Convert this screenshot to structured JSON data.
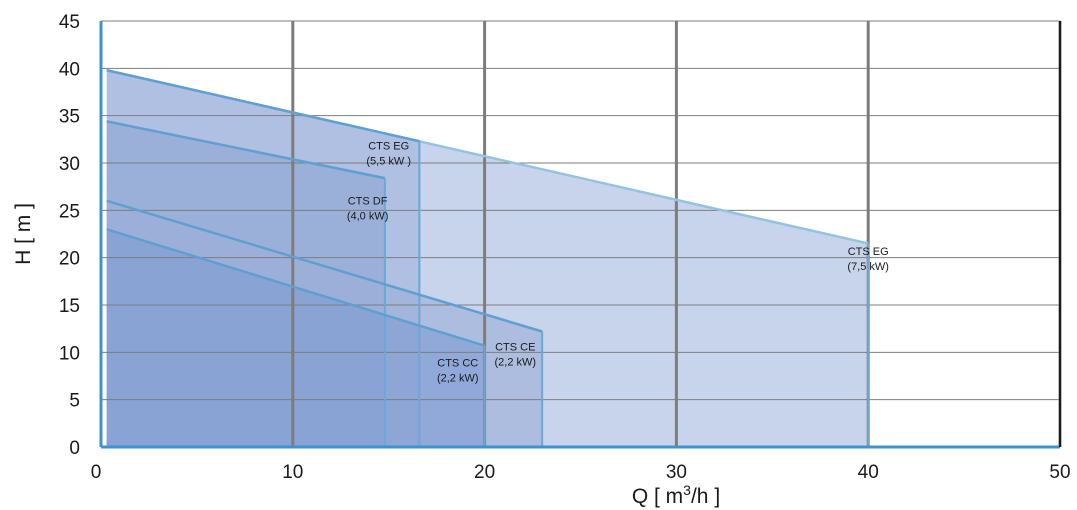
{
  "chart_data": {
    "type": "area",
    "xlabel": "Q [ m³/h ]",
    "ylabel": "H [ m ]",
    "xlim": [
      0,
      50
    ],
    "ylim": [
      0,
      45
    ],
    "xticks": [
      "0",
      "10",
      "20",
      "30",
      "40",
      "50"
    ],
    "yticks": [
      "0",
      "5",
      "10",
      "15",
      "20",
      "25",
      "30",
      "35",
      "40",
      "45"
    ],
    "grid": true,
    "series": [
      {
        "label": [
          "CTS EG",
          "(7,5 kW)"
        ],
        "color": "#c8d4ec",
        "points": [
          [
            0.3,
            39.8
          ],
          [
            40,
            21.5
          ]
        ],
        "annotation_at": [
          40,
          20.3
        ]
      },
      {
        "label": [
          "CTS EG",
          "(5,5 kW )"
        ],
        "color": "#9fb3db",
        "points": [
          [
            0.3,
            39.8
          ],
          [
            16.6,
            32.3
          ]
        ],
        "annotation_at": [
          15,
          31.4
        ]
      },
      {
        "label": [
          "CTS DF",
          "(4,0 kW)"
        ],
        "color": "#8fa6d4",
        "points": [
          [
            0.3,
            34.4
          ],
          [
            14.8,
            28.4
          ]
        ],
        "annotation_at": [
          13.9,
          25.6
        ]
      },
      {
        "label": [
          "CTS CE",
          "(2,2 kW)"
        ],
        "color": "#9daed6",
        "points": [
          [
            0.3,
            26.0
          ],
          [
            23.0,
            12.2
          ]
        ],
        "annotation_at": [
          21.6,
          10.2
        ]
      },
      {
        "label": [
          "CTS CC",
          "(2,2 kW)"
        ],
        "color": "#7f9dd3",
        "points": [
          [
            0.3,
            23.0
          ],
          [
            20.0,
            10.7
          ]
        ],
        "annotation_at": [
          18.6,
          8.5
        ]
      }
    ]
  }
}
